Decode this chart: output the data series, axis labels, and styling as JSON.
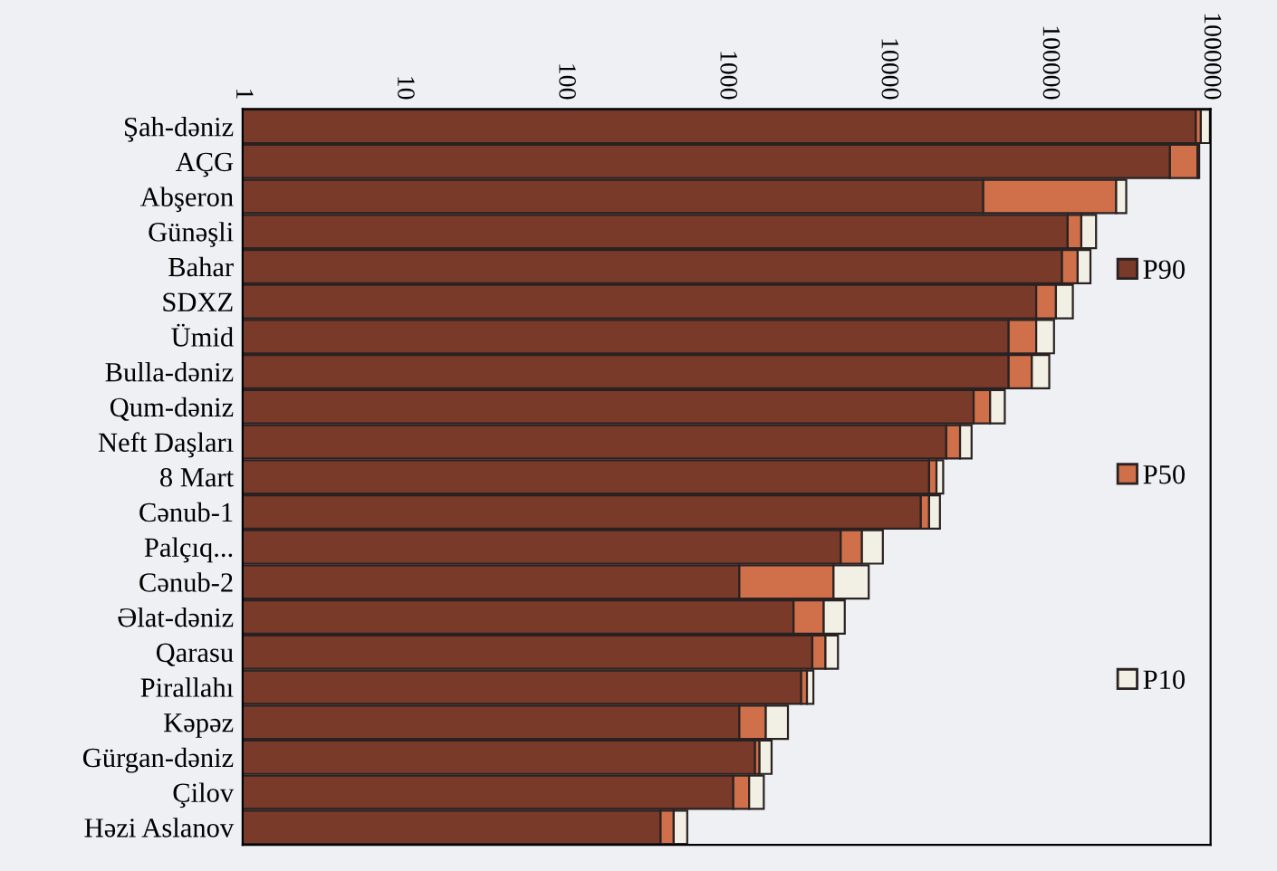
{
  "chart_data": {
    "type": "bar",
    "orientation": "horizontal",
    "stacked": true,
    "log": "x",
    "legend": "right",
    "grid": false,
    "categories": [
      "Şah-dəniz",
      "AÇG",
      "Abşeron",
      "Günəşli",
      "Bahar",
      "SDXZ",
      "Ümid",
      "Bulla-dəniz",
      "Qum-dəniz",
      "Neft Daşları",
      "8 Mart",
      "Cənub-1",
      "Palçıq...",
      "Cənub-2",
      "Əlat-dəniz",
      "Qarasu",
      "Pirallahı",
      "Kəpəz",
      "Gürgan-dəniz",
      "Çilov",
      "Həzi Aslanov"
    ],
    "xlim": [
      1,
      1000000
    ],
    "xticks": [
      1,
      10,
      100,
      1000,
      10000,
      100000,
      1000000
    ],
    "series": [
      {
        "name": "P90",
        "color": "#7a3a2a",
        "values": [
          810000,
          560000,
          39000,
          130000,
          120000,
          83000,
          56000,
          56000,
          34000,
          23000,
          18000,
          16000,
          5100,
          1200,
          2600,
          3400,
          2900,
          1200,
          1500,
          1100,
          390
        ]
      },
      {
        "name": "P50",
        "color": "#d0704a",
        "values": [
          60000,
          270000,
          221000,
          28000,
          30000,
          27000,
          27000,
          22000,
          9000,
          5000,
          2000,
          2000,
          1800,
          3400,
          1400,
          700,
          250,
          550,
          100,
          280,
          80
        ]
      },
      {
        "name": "P10",
        "color": "#f2f0e4",
        "values": [
          120000,
          20000,
          40000,
          37000,
          30000,
          30000,
          24000,
          22000,
          10000,
          5000,
          2000,
          3000,
          2400,
          3000,
          1400,
          800,
          300,
          650,
          300,
          320,
          100
        ]
      }
    ]
  }
}
